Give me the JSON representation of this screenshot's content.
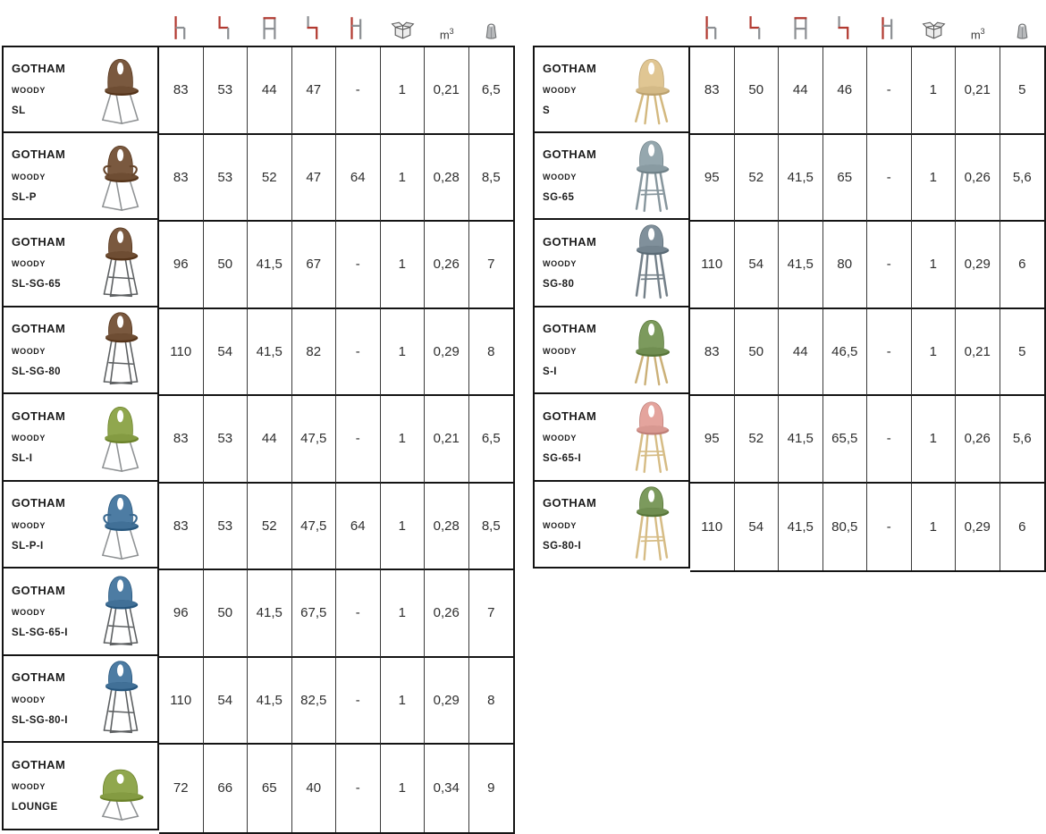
{
  "colors": {
    "accent_red": "#b23a31",
    "icon_gray": "#8d9094",
    "border_dark": "#141414",
    "metal_leg": "#6e7276",
    "chrome_leg": "#9a9da0"
  },
  "header": {
    "columns": [
      {
        "name": "chair-height-icon"
      },
      {
        "name": "chair-width-icon"
      },
      {
        "name": "chair-depth-icon"
      },
      {
        "name": "seat-height-icon"
      },
      {
        "name": "armrest-height-icon"
      },
      {
        "name": "package-box-icon"
      },
      {
        "name": "volume-label",
        "text_base": "m",
        "text_sup": "3"
      },
      {
        "name": "weight-icon"
      }
    ]
  },
  "tables": [
    {
      "id": "left",
      "rows": [
        {
          "brand": "GOTHAM",
          "brand_sub": "WOODY",
          "model": "SL",
          "chair": {
            "shape": "chair",
            "legs": "sled",
            "seat_color": "#7a593f",
            "leg_color": "#8f9294"
          },
          "values": [
            "83",
            "53",
            "44",
            "47",
            "-",
            "1",
            "0,21",
            "6,5"
          ]
        },
        {
          "brand": "GOTHAM",
          "brand_sub": "WOODY",
          "model": "SL-P",
          "chair": {
            "shape": "armchair",
            "legs": "sled",
            "seat_color": "#7a593f",
            "leg_color": "#8f9294"
          },
          "values": [
            "83",
            "53",
            "52",
            "47",
            "64",
            "1",
            "0,28",
            "8,5"
          ]
        },
        {
          "brand": "GOTHAM",
          "brand_sub": "WOODY",
          "model": "SL-SG-65",
          "chair": {
            "shape": "stool",
            "legs": "sled-stool",
            "seat_color": "#7a593f",
            "leg_color": "#5c5f61"
          },
          "values": [
            "96",
            "50",
            "41,5",
            "67",
            "-",
            "1",
            "0,26",
            "7"
          ]
        },
        {
          "brand": "GOTHAM",
          "brand_sub": "WOODY",
          "model": "SL-SG-80",
          "chair": {
            "shape": "stool-tall",
            "legs": "sled-stool",
            "seat_color": "#7a593f",
            "leg_color": "#5c5f61"
          },
          "values": [
            "110",
            "54",
            "41,5",
            "82",
            "-",
            "1",
            "0,29",
            "8"
          ]
        },
        {
          "brand": "GOTHAM",
          "brand_sub": "WOODY",
          "model": "SL-I",
          "chair": {
            "shape": "chair",
            "legs": "sled",
            "seat_color": "#90a74e",
            "leg_color": "#8f9294"
          },
          "values": [
            "83",
            "53",
            "44",
            "47,5",
            "-",
            "1",
            "0,21",
            "6,5"
          ]
        },
        {
          "brand": "GOTHAM",
          "brand_sub": "WOODY",
          "model": "SL-P-I",
          "chair": {
            "shape": "armchair",
            "legs": "sled",
            "seat_color": "#4d7ca3",
            "leg_color": "#8f9294"
          },
          "values": [
            "83",
            "53",
            "52",
            "47,5",
            "64",
            "1",
            "0,28",
            "8,5"
          ]
        },
        {
          "brand": "GOTHAM",
          "brand_sub": "WOODY",
          "model": "SL-SG-65-I",
          "chair": {
            "shape": "stool",
            "legs": "sled-stool",
            "seat_color": "#4d7ca3",
            "leg_color": "#5c5f61"
          },
          "values": [
            "96",
            "50",
            "41,5",
            "67,5",
            "-",
            "1",
            "0,26",
            "7"
          ]
        },
        {
          "brand": "GOTHAM",
          "brand_sub": "WOODY",
          "model": "SL-SG-80-I",
          "chair": {
            "shape": "stool-tall",
            "legs": "sled-stool",
            "seat_color": "#4d7ca3",
            "leg_color": "#5c5f61"
          },
          "values": [
            "110",
            "54",
            "41,5",
            "82,5",
            "-",
            "1",
            "0,29",
            "8"
          ]
        },
        {
          "brand": "GOTHAM",
          "brand_sub": "WOODY",
          "model": "LOUNGE",
          "chair": {
            "shape": "lounge",
            "legs": "sled",
            "seat_color": "#90a74e",
            "leg_color": "#8f9294"
          },
          "values": [
            "72",
            "66",
            "65",
            "40",
            "-",
            "1",
            "0,34",
            "9"
          ]
        }
      ]
    },
    {
      "id": "right",
      "rows": [
        {
          "brand": "GOTHAM",
          "brand_sub": "WOODY",
          "model": "S",
          "chair": {
            "shape": "chair",
            "legs": "wood4",
            "seat_color": "#e0c693",
            "leg_color": "#d3b87e"
          },
          "values": [
            "83",
            "50",
            "44",
            "46",
            "-",
            "1",
            "0,21",
            "5"
          ]
        },
        {
          "brand": "GOTHAM",
          "brand_sub": "WOODY",
          "model": "SG-65",
          "chair": {
            "shape": "stool",
            "legs": "wood-stool",
            "seat_color": "#95a7ae",
            "leg_color": "#87969d"
          },
          "values": [
            "95",
            "52",
            "41,5",
            "65",
            "-",
            "1",
            "0,26",
            "5,6"
          ]
        },
        {
          "brand": "GOTHAM",
          "brand_sub": "WOODY",
          "model": "SG-80",
          "chair": {
            "shape": "stool-tall",
            "legs": "wood-stool",
            "seat_color": "#80909b",
            "leg_color": "#748089"
          },
          "values": [
            "110",
            "54",
            "41,5",
            "80",
            "-",
            "1",
            "0,29",
            "6"
          ]
        },
        {
          "brand": "GOTHAM",
          "brand_sub": "WOODY",
          "model": "S-I",
          "chair": {
            "shape": "chair",
            "legs": "wood4",
            "seat_color": "#7c9a5d",
            "leg_color": "#cbb077"
          },
          "values": [
            "83",
            "50",
            "44",
            "46,5",
            "-",
            "1",
            "0,21",
            "5"
          ]
        },
        {
          "brand": "GOTHAM",
          "brand_sub": "WOODY",
          "model": "SG-65-I",
          "chair": {
            "shape": "stool",
            "legs": "wood-stool",
            "seat_color": "#e4a49d",
            "leg_color": "#d6bc85"
          },
          "values": [
            "95",
            "52",
            "41,5",
            "65,5",
            "-",
            "1",
            "0,26",
            "5,6"
          ]
        },
        {
          "brand": "GOTHAM",
          "brand_sub": "WOODY",
          "model": "SG-80-I",
          "chair": {
            "shape": "stool-tall",
            "legs": "wood-stool",
            "seat_color": "#7c9a5d",
            "leg_color": "#d6bc85"
          },
          "values": [
            "110",
            "54",
            "41,5",
            "80,5",
            "-",
            "1",
            "0,29",
            "6"
          ]
        }
      ]
    }
  ]
}
